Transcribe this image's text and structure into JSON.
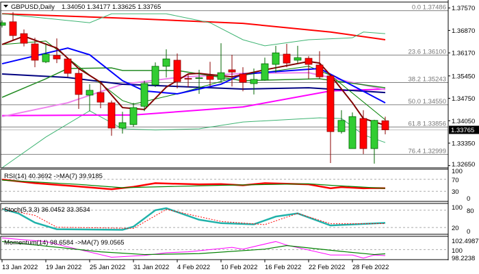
{
  "header": {
    "symbol": "GBPUSD,Daily",
    "ohlc": "1.34050 1.34177 1.33625 1.33765"
  },
  "colors": {
    "bull_fill": "#32cd32",
    "bull_edge": "#006400",
    "bear_fill": "#ff0000",
    "bear_edge": "#8b0000",
    "grid": "#808080"
  },
  "chart_data": [
    {
      "type": "candlestick",
      "title": "GBPUSD,Daily",
      "ylim": [
        1.3265,
        1.3757
      ],
      "y_ticks": [
        "1.37570",
        "1.36870",
        "1.36170",
        "1.35450",
        "1.34750",
        "1.34050",
        "1.33350",
        "1.32650"
      ],
      "current_price": "1.33765",
      "x_tick_labels": [
        "13 Jan 2022",
        "19 Jan 2022",
        "25 Jan 2022",
        "31 Jan 2022",
        "4 Feb 2022",
        "10 Feb 2022",
        "16 Feb 2022",
        "22 Feb 2022",
        "28 Feb 2022"
      ],
      "x_tick_index": [
        0,
        4,
        8,
        12,
        16,
        20,
        24,
        28,
        32
      ],
      "dates": [
        "2022-01-13",
        "2022-01-14",
        "2022-01-17",
        "2022-01-18",
        "2022-01-19",
        "2022-01-20",
        "2022-01-21",
        "2022-01-24",
        "2022-01-25",
        "2022-01-26",
        "2022-01-27",
        "2022-01-28",
        "2022-01-31",
        "2022-02-01",
        "2022-02-02",
        "2022-02-03",
        "2022-02-04",
        "2022-02-07",
        "2022-02-08",
        "2022-02-09",
        "2022-02-10",
        "2022-02-11",
        "2022-02-14",
        "2022-02-15",
        "2022-02-16",
        "2022-02-17",
        "2022-02-18",
        "2022-02-21",
        "2022-02-22",
        "2022-02-23",
        "2022-02-24",
        "2022-02-25",
        "2022-02-28",
        "2022-03-01",
        "2022-03-02",
        "2022-03-03"
      ],
      "ohlc": [
        [
          1.3703,
          1.3718,
          1.3696,
          1.3711
        ],
        [
          1.3714,
          1.3744,
          1.3654,
          1.3671
        ],
        [
          1.3677,
          1.369,
          1.3637,
          1.3647
        ],
        [
          1.3645,
          1.3664,
          1.3572,
          1.3594
        ],
        [
          1.3589,
          1.3647,
          1.3585,
          1.3613
        ],
        [
          1.3609,
          1.3662,
          1.3585,
          1.3598
        ],
        [
          1.3598,
          1.3602,
          1.3542,
          1.3553
        ],
        [
          1.3553,
          1.3568,
          1.3442,
          1.3487
        ],
        [
          1.3485,
          1.3519,
          1.3435,
          1.35
        ],
        [
          1.3493,
          1.3521,
          1.3444,
          1.3463
        ],
        [
          1.3461,
          1.3468,
          1.3358,
          1.3382
        ],
        [
          1.3382,
          1.3433,
          1.3365,
          1.3399
        ],
        [
          1.3393,
          1.3461,
          1.3386,
          1.3446
        ],
        [
          1.345,
          1.353,
          1.3435,
          1.3521
        ],
        [
          1.3517,
          1.3587,
          1.351,
          1.3575
        ],
        [
          1.3575,
          1.3628,
          1.354,
          1.3598
        ],
        [
          1.3594,
          1.3615,
          1.3506,
          1.3527
        ],
        [
          1.3537,
          1.3553,
          1.351,
          1.3535
        ],
        [
          1.3538,
          1.3564,
          1.3489,
          1.3539
        ],
        [
          1.3545,
          1.3589,
          1.3512,
          1.3534
        ],
        [
          1.3534,
          1.3647,
          1.3525,
          1.3555
        ],
        [
          1.3564,
          1.3611,
          1.3512,
          1.3557
        ],
        [
          1.3551,
          1.3572,
          1.3497,
          1.3525
        ],
        [
          1.3521,
          1.3568,
          1.3487,
          1.3534
        ],
        [
          1.3532,
          1.3602,
          1.353,
          1.3583
        ],
        [
          1.3581,
          1.3639,
          1.3555,
          1.3617
        ],
        [
          1.3613,
          1.3645,
          1.3572,
          1.3585
        ],
        [
          1.3594,
          1.3639,
          1.3585,
          1.3602
        ],
        [
          1.36,
          1.3607,
          1.3536,
          1.3581
        ],
        [
          1.3579,
          1.3622,
          1.3536,
          1.3542
        ],
        [
          1.3545,
          1.3545,
          1.3273,
          1.3371
        ],
        [
          1.3371,
          1.3438,
          1.3365,
          1.3406
        ],
        [
          1.3318,
          1.3431,
          1.3318,
          1.3418
        ],
        [
          1.3412,
          1.3438,
          1.3301,
          1.3318
        ],
        [
          1.3318,
          1.3408,
          1.3271,
          1.3406
        ],
        [
          1.3405,
          1.34177,
          1.33625,
          1.33765
        ]
      ],
      "overlays": [
        {
          "color": "#ff0000",
          "width": 2,
          "points": [
            [
              0,
              1.3739
            ],
            [
              12,
              1.3724
            ],
            [
              22,
              1.3709
            ],
            [
              30,
              1.3682
            ],
            [
              35,
              1.3658
            ]
          ]
        },
        {
          "color": "#3cb371",
          "width": 1,
          "points": [
            [
              0,
              1.3739
            ],
            [
              8,
              1.3711
            ],
            [
              10,
              1.3739
            ],
            [
              15,
              1.3739
            ],
            [
              19,
              1.3711
            ],
            [
              22,
              1.3658
            ],
            [
              24,
              1.3639
            ],
            [
              28,
              1.3658
            ],
            [
              32,
              1.3664
            ],
            [
              33,
              1.3682
            ],
            [
              35,
              1.3677
            ]
          ]
        },
        {
          "color": "#3cb371",
          "width": 1,
          "points": [
            [
              0,
              1.3258
            ],
            [
              4,
              1.3354
            ],
            [
              8,
              1.3436
            ],
            [
              11,
              1.338
            ],
            [
              14,
              1.3376
            ],
            [
              18,
              1.338
            ],
            [
              22,
              1.3401
            ],
            [
              29,
              1.3414
            ],
            [
              31,
              1.3412
            ],
            [
              33,
              1.3361
            ],
            [
              35,
              1.3337
            ]
          ]
        },
        {
          "color": "#ff00ff",
          "width": 2,
          "points": [
            [
              0,
              1.3421
            ],
            [
              12,
              1.3423
            ],
            [
              22,
              1.3448
            ],
            [
              30,
              1.3498
            ],
            [
              35,
              1.3504
            ]
          ]
        },
        {
          "color": "#ee82ee",
          "width": 2,
          "points": [
            [
              0,
              1.3418
            ],
            [
              6,
              1.3461
            ],
            [
              11,
              1.3519
            ],
            [
              16,
              1.354
            ],
            [
              22,
              1.3553
            ],
            [
              28,
              1.3555
            ],
            [
              31,
              1.3532
            ],
            [
              35,
              1.3502
            ]
          ]
        },
        {
          "color": "#000080",
          "width": 2,
          "points": [
            [
              0,
              1.3551
            ],
            [
              6,
              1.354
            ],
            [
              11,
              1.3519
            ],
            [
              19,
              1.3508
            ],
            [
              22,
              1.3504
            ],
            [
              28,
              1.3508
            ],
            [
              35,
              1.3493
            ]
          ]
        },
        {
          "color": "#228b22",
          "width": 1.5,
          "points": [
            [
              0,
              1.3478
            ],
            [
              4,
              1.3536
            ],
            [
              6,
              1.3568
            ],
            [
              10,
              1.357
            ],
            [
              11,
              1.3562
            ],
            [
              16,
              1.3562
            ],
            [
              22,
              1.353
            ],
            [
              29,
              1.3536
            ],
            [
              35,
              1.3508
            ]
          ]
        },
        {
          "color": "#008000",
          "width": 1,
          "points": [
            [
              0,
              1.3643
            ],
            [
              4,
              1.3654
            ],
            [
              11,
              1.3468
            ],
            [
              12,
              1.3457
            ],
            [
              16,
              1.3489
            ],
            [
              22,
              1.3547
            ],
            [
              28,
              1.3575
            ],
            [
              30,
              1.3547
            ],
            [
              35,
              1.3408
            ]
          ]
        },
        {
          "color": "#0000ff",
          "width": 2,
          "points": [
            [
              0,
              1.3583
            ],
            [
              6,
              1.3632
            ],
            [
              8,
              1.3611
            ],
            [
              11,
              1.353
            ],
            [
              13,
              1.3498
            ],
            [
              16,
              1.3489
            ],
            [
              20,
              1.3519
            ],
            [
              22,
              1.3551
            ],
            [
              29,
              1.3568
            ],
            [
              32,
              1.3515
            ],
            [
              35,
              1.3461
            ]
          ]
        },
        {
          "color": "#800000",
          "width": 2,
          "points": [
            [
              0,
              1.3643
            ],
            [
              2,
              1.3669
            ],
            [
              5,
              1.3632
            ],
            [
              7,
              1.3568
            ],
            [
              9,
              1.3525
            ],
            [
              11,
              1.3446
            ],
            [
              13,
              1.344
            ],
            [
              15,
              1.351
            ],
            [
              17,
              1.3551
            ],
            [
              18,
              1.3553
            ],
            [
              21,
              1.3542
            ],
            [
              24,
              1.3564
            ],
            [
              28,
              1.359
            ],
            [
              29,
              1.3585
            ],
            [
              30,
              1.3547
            ],
            [
              32,
              1.3461
            ],
            [
              33,
              1.3412
            ],
            [
              35,
              1.3391
            ]
          ]
        }
      ],
      "fibonacci": [
        {
          "label": "0.0 1.37486",
          "price": 1.37486
        },
        {
          "label": "23.6 1.36100",
          "price": 1.361
        },
        {
          "label": "38.2 1.35243",
          "price": 1.35243
        },
        {
          "label": "50.0 1.34550",
          "price": 1.3455
        },
        {
          "label": "61.8 1.33856",
          "price": 1.33856
        },
        {
          "label": "76.4 1.32999",
          "price": 1.32999
        }
      ]
    },
    {
      "type": "line",
      "title": "RSI(14) 40.3692  ->MA(7) 39.9185",
      "ylim": [
        0,
        100
      ],
      "y_ticks": [
        "100",
        "70",
        "30",
        "0"
      ],
      "levels": [
        70,
        30
      ],
      "series": [
        {
          "name": "RSI(14)",
          "color": "#ff0000",
          "width": 2.5,
          "points": [
            [
              0,
              69
            ],
            [
              3,
              57
            ],
            [
              7,
              46
            ],
            [
              10,
              37
            ],
            [
              12,
              45
            ],
            [
              14,
              57
            ],
            [
              18,
              53
            ],
            [
              20,
              54
            ],
            [
              22,
              50
            ],
            [
              24,
              57
            ],
            [
              28,
              53
            ],
            [
              30,
              40
            ],
            [
              31,
              44
            ],
            [
              33,
              40
            ],
            [
              34,
              41
            ],
            [
              35,
              40.37
            ]
          ]
        },
        {
          "name": "MA(7)",
          "color": "#008000",
          "width": 1.2,
          "points": [
            [
              0,
              67
            ],
            [
              7,
              53
            ],
            [
              11,
              42
            ],
            [
              20,
              50
            ],
            [
              28,
              55
            ],
            [
              30,
              50
            ],
            [
              35,
              39.92
            ]
          ]
        }
      ]
    },
    {
      "type": "line",
      "title": "Stoch(5,3,3) 36.0452 33.3534",
      "ylim": [
        0,
        100
      ],
      "y_ticks": [
        "100",
        "80",
        "20",
        "0"
      ],
      "levels": [
        80,
        20
      ],
      "series": [
        {
          "color": "#20b2aa",
          "width": 2.5,
          "points": [
            [
              0,
              85
            ],
            [
              1.5,
              69
            ],
            [
              3,
              37
            ],
            [
              5,
              14
            ],
            [
              11,
              12
            ],
            [
              12,
              23
            ],
            [
              14,
              80
            ],
            [
              15,
              87
            ],
            [
              18,
              47
            ],
            [
              20,
              35
            ],
            [
              23,
              31
            ],
            [
              25,
              58
            ],
            [
              27,
              69
            ],
            [
              30,
              27
            ],
            [
              35,
              36.05
            ]
          ]
        },
        {
          "color": "#ff0000",
          "width": 1,
          "dashed": true,
          "points": [
            [
              0,
              85
            ],
            [
              3,
              62
            ],
            [
              5,
              21
            ],
            [
              12,
              17
            ],
            [
              15,
              83
            ],
            [
              20,
              41
            ],
            [
              24,
              30
            ],
            [
              27,
              69
            ],
            [
              30,
              33
            ],
            [
              35,
              33.35
            ]
          ]
        }
      ]
    },
    {
      "type": "line",
      "title": "Momentum(14) 98.6584  ->MA(7) 99.0565",
      "ylim": [
        98.2238,
        102.4987
      ],
      "y_ticks": [
        "102.4987",
        "100",
        "98.2238"
      ],
      "levels": [
        100
      ],
      "series": [
        {
          "name": "Momentum(14)",
          "color": "#ff00ff",
          "width": 1,
          "points": [
            [
              0,
              102.6
            ],
            [
              4,
              101.8
            ],
            [
              6,
              100.6
            ],
            [
              10,
              98.3
            ],
            [
              13,
              98.7
            ],
            [
              15,
              99.3
            ],
            [
              17,
              99.5
            ],
            [
              21,
              100.5
            ],
            [
              22,
              100.1
            ],
            [
              25,
              101.8
            ],
            [
              26,
              101.0
            ],
            [
              30,
              98.8
            ],
            [
              32,
              98.8
            ],
            [
              33,
              98.1
            ],
            [
              34,
              98.8
            ],
            [
              35,
              98.66
            ]
          ]
        },
        {
          "name": "MA(7)",
          "color": "#008000",
          "width": 1.2,
          "points": [
            [
              0,
              101.8
            ],
            [
              9,
              99.5
            ],
            [
              13,
              98.9
            ],
            [
              18,
              99.1
            ],
            [
              24,
              100.1
            ],
            [
              26,
              100.9
            ],
            [
              31,
              99.6
            ],
            [
              34,
              98.9
            ],
            [
              35,
              99.06
            ]
          ]
        }
      ]
    }
  ]
}
